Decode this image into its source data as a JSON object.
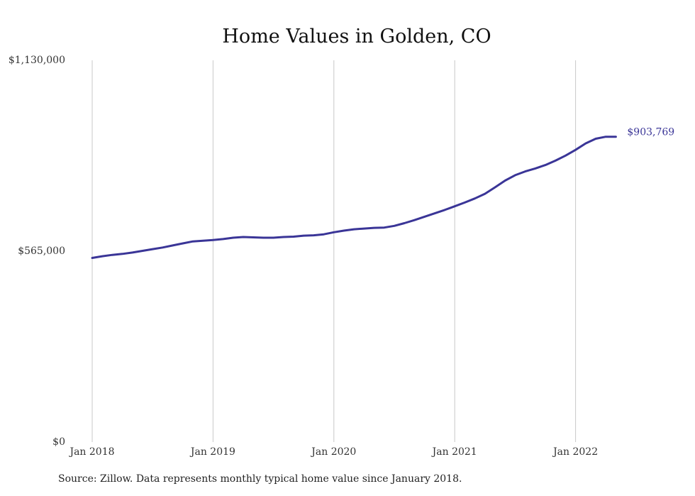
{
  "chart_data": {
    "type": "line",
    "title": "Home Values in Golden, CO",
    "xlabel": "",
    "ylabel": "",
    "ylim": [
      0,
      1130000
    ],
    "xlim": [
      "2018-01",
      "2022-05"
    ],
    "y_ticks": [
      "$0",
      "$565,000",
      "$1,130,000"
    ],
    "y_tick_values": [
      0,
      565000,
      1130000
    ],
    "x_ticks": [
      "Jan 2018",
      "Jan 2019",
      "Jan 2020",
      "Jan 2021",
      "Jan 2022"
    ],
    "x_tick_values": [
      "2018-01",
      "2019-01",
      "2020-01",
      "2021-01",
      "2022-01"
    ],
    "grid": "vertical",
    "line_color": "#3a3597",
    "series": [
      {
        "x": [
          "2018-01",
          "2018-02",
          "2018-03",
          "2018-04",
          "2018-05",
          "2018-06",
          "2018-07",
          "2018-08",
          "2018-09",
          "2018-10",
          "2018-11",
          "2018-12",
          "2019-01",
          "2019-02",
          "2019-03",
          "2019-04",
          "2019-05",
          "2019-06",
          "2019-07",
          "2019-08",
          "2019-09",
          "2019-10",
          "2019-11",
          "2019-12",
          "2020-01",
          "2020-02",
          "2020-03",
          "2020-04",
          "2020-05",
          "2020-06",
          "2020-07",
          "2020-08",
          "2020-09",
          "2020-10",
          "2020-11",
          "2020-12",
          "2021-01",
          "2021-02",
          "2021-03",
          "2021-04",
          "2021-05",
          "2021-06",
          "2021-07",
          "2021-08",
          "2021-09",
          "2021-10",
          "2021-11",
          "2021-12",
          "2022-01",
          "2022-02",
          "2022-03",
          "2022-04",
          "2022-05"
        ],
        "values": [
          545000,
          550000,
          554000,
          557000,
          561000,
          566000,
          571000,
          576000,
          582000,
          588000,
          594000,
          596000,
          598000,
          601000,
          605000,
          607000,
          606000,
          605000,
          605000,
          607000,
          608000,
          611000,
          612000,
          615000,
          621000,
          626000,
          630000,
          632000,
          634000,
          635000,
          640000,
          648000,
          657000,
          667000,
          677000,
          687000,
          698000,
          709000,
          721000,
          735000,
          754000,
          774000,
          790000,
          801000,
          810000,
          820000,
          833000,
          848000,
          865000,
          884000,
          898000,
          903769,
          903769
        ]
      }
    ],
    "end_label": "$903,769"
  },
  "source_note": "Source: Zillow. Data represents monthly typical home value since January 2018."
}
